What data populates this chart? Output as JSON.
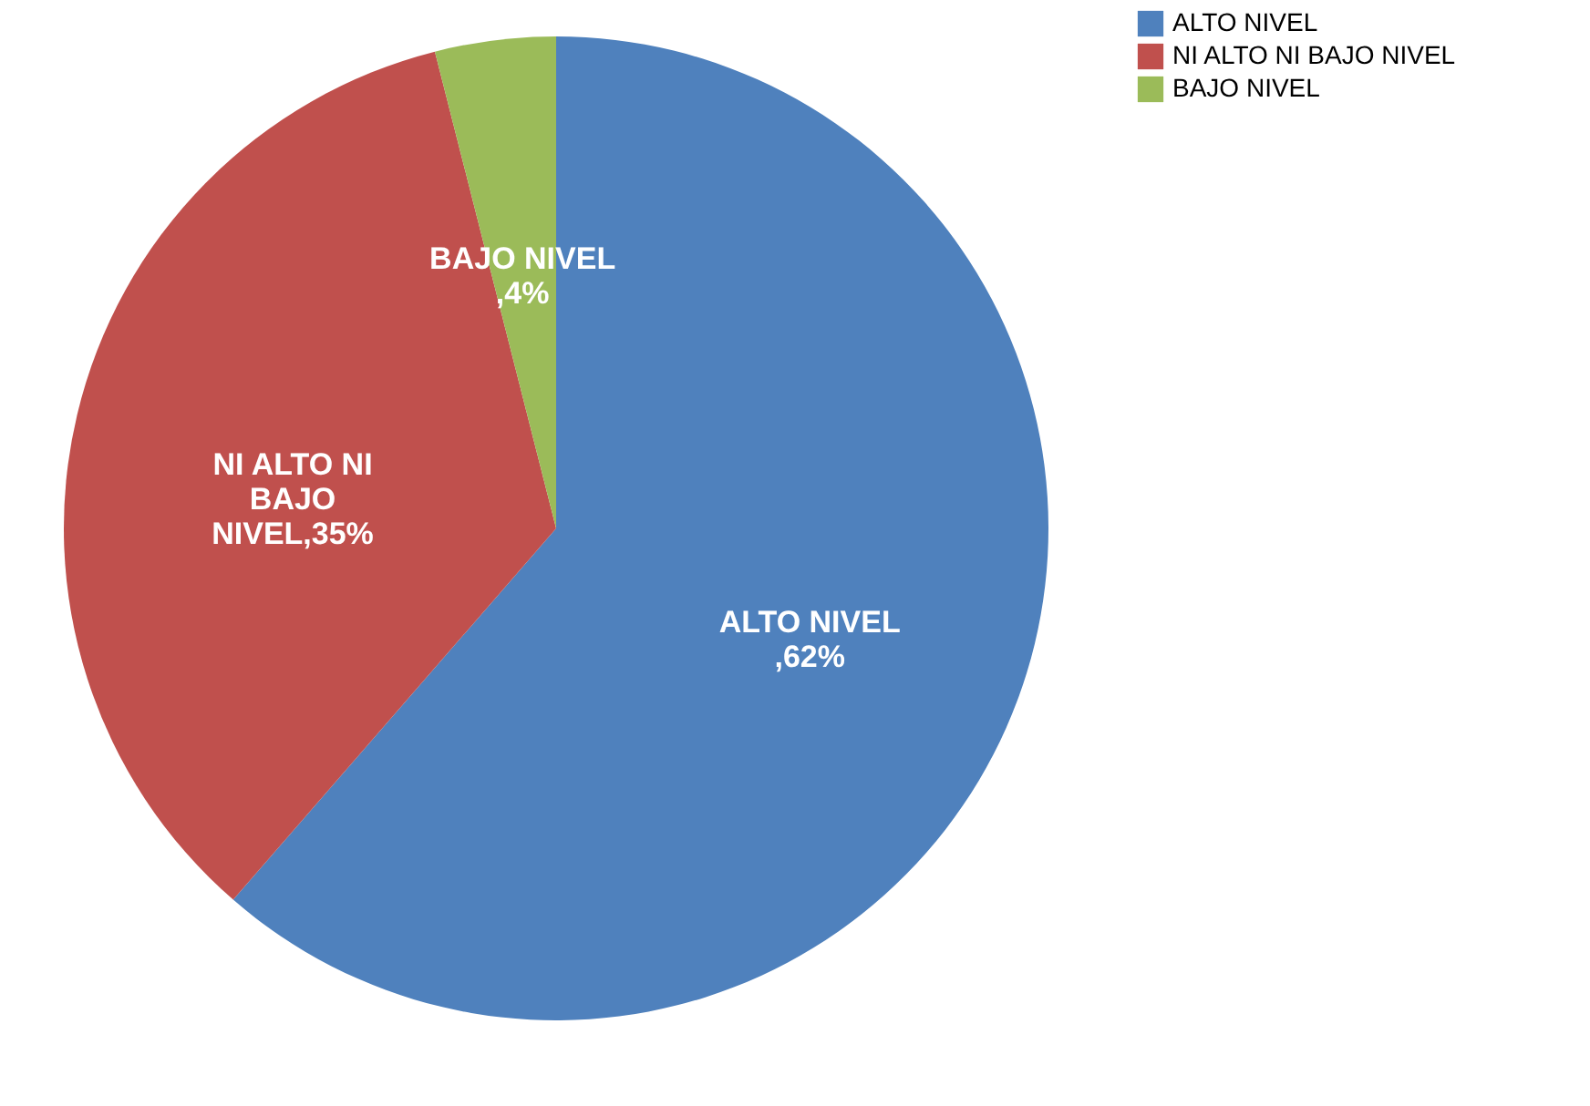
{
  "chart_data": {
    "type": "pie",
    "categories": [
      "ALTO NIVEL",
      "NI ALTO NI BAJO NIVEL",
      "BAJO NIVEL"
    ],
    "values": [
      62,
      35,
      4
    ],
    "colors": [
      "#4f81bd",
      "#c0504d",
      "#9bbb59"
    ],
    "value_labels": [
      "ALTO NIVEL\n,62%",
      "NI ALTO NI\nBAJO\nNIVEL,35%",
      "BAJO NIVEL\n,4%"
    ],
    "legend": "right"
  }
}
